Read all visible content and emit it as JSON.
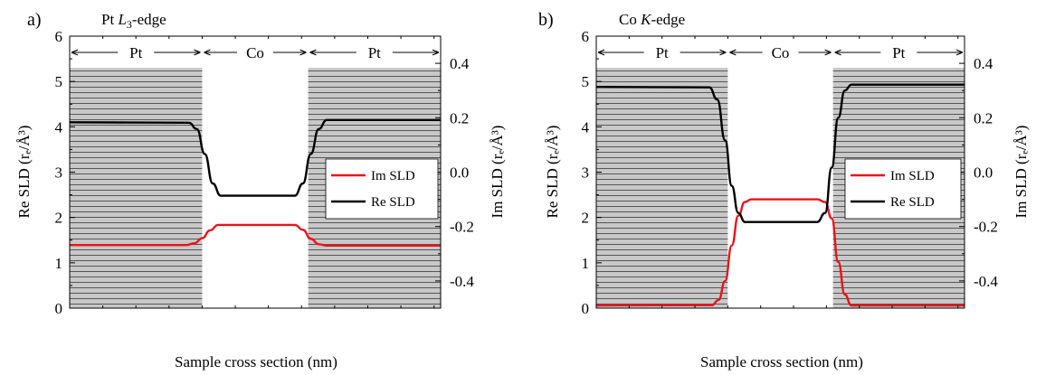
{
  "chart_data": [
    {
      "panel_label": "a)",
      "title_prefix": "Pt ",
      "title_edge": "L",
      "title_edge_sub": "3",
      "title_suffix": "-edge",
      "type": "line",
      "xlabel": "Sample cross section (nm)",
      "ylabel_left": "Re SLD (rₑ/Å³)",
      "ylabel_right": "Im SLD (rₑ/Å³)",
      "xlim": [
        2,
        30
      ],
      "ylim_left": [
        0,
        6
      ],
      "ylim_right": [
        -0.5,
        0.5
      ],
      "xticks": [
        5,
        10,
        15,
        20,
        25,
        30
      ],
      "yticks_left": [
        0,
        1,
        2,
        3,
        4,
        5,
        6
      ],
      "yticks_right": [
        -0.4,
        -0.2,
        0.0,
        0.2,
        0.4
      ],
      "ytick_labels_right": [
        "-0.4",
        "-0.2",
        "0.0",
        "0.2",
        "0.4"
      ],
      "regions": [
        {
          "label": "Pt",
          "x": [
            2,
            12
          ],
          "hatched": true
        },
        {
          "label": "Co",
          "x": [
            12,
            20
          ],
          "hatched": false
        },
        {
          "label": "Pt",
          "x": [
            20,
            30
          ],
          "hatched": true
        }
      ],
      "series": [
        {
          "name": "Im SLD",
          "axis": "right",
          "color": "#e8141b",
          "x": [
            2,
            10.8,
            11.4,
            12.0,
            12.6,
            13.2,
            19.0,
            19.6,
            20.2,
            20.8,
            21.4,
            30
          ],
          "y": [
            -0.268,
            -0.268,
            -0.262,
            -0.243,
            -0.214,
            -0.194,
            -0.194,
            -0.212,
            -0.245,
            -0.265,
            -0.27,
            -0.27
          ]
        },
        {
          "name": "Re SLD",
          "axis": "left",
          "color": "#000000",
          "x": [
            2,
            11.0,
            11.6,
            12.2,
            12.8,
            13.4,
            19.0,
            19.6,
            20.2,
            20.8,
            21.4,
            30
          ],
          "y": [
            4.1,
            4.09,
            3.95,
            3.4,
            2.75,
            2.48,
            2.48,
            2.75,
            3.4,
            3.95,
            4.15,
            4.15
          ]
        }
      ],
      "legend": {
        "position": "center-right",
        "entries": [
          "Im SLD",
          "Re SLD"
        ]
      }
    },
    {
      "panel_label": "b)",
      "title_prefix": "Co ",
      "title_edge": "K",
      "title_edge_sub": "",
      "title_suffix": "-edge",
      "type": "line",
      "xlabel": "Sample cross section (nm)",
      "ylabel_left": "Re SLD (rₑ/Å³)",
      "ylabel_right": "Im SLD (rₑ/Å³)",
      "xlim": [
        2,
        30
      ],
      "ylim_left": [
        0,
        6
      ],
      "ylim_right": [
        -0.5,
        0.5
      ],
      "xticks": [
        5,
        10,
        15,
        20,
        25,
        30
      ],
      "yticks_left": [
        0,
        1,
        2,
        3,
        4,
        5,
        6
      ],
      "yticks_right": [
        -0.4,
        -0.2,
        0.0,
        0.2,
        0.4
      ],
      "ytick_labels_right": [
        "-0.4",
        "-0.2",
        "0.0",
        "0.2",
        "0.4"
      ],
      "regions": [
        {
          "label": "Pt",
          "x": [
            2,
            12
          ],
          "hatched": true
        },
        {
          "label": "Co",
          "x": [
            12,
            20
          ],
          "hatched": false
        },
        {
          "label": "Pt",
          "x": [
            20,
            30
          ],
          "hatched": true
        }
      ],
      "series": [
        {
          "name": "Im SLD",
          "axis": "right",
          "color": "#e8141b",
          "x": [
            2,
            10.8,
            11.3,
            11.8,
            12.3,
            12.8,
            13.3,
            13.8,
            18.8,
            19.4,
            19.9,
            20.4,
            20.9,
            21.4,
            30
          ],
          "y": [
            -0.49,
            -0.489,
            -0.47,
            -0.4,
            -0.27,
            -0.16,
            -0.11,
            -0.1,
            -0.1,
            -0.11,
            -0.17,
            -0.33,
            -0.45,
            -0.49,
            -0.49
          ]
        },
        {
          "name": "Re SLD",
          "axis": "left",
          "color": "#000000",
          "x": [
            2,
            10.6,
            11.2,
            11.8,
            12.3,
            12.8,
            13.3,
            18.8,
            19.4,
            19.9,
            20.4,
            20.9,
            21.4,
            30
          ],
          "y": [
            4.88,
            4.87,
            4.6,
            3.7,
            2.7,
            2.1,
            1.9,
            1.9,
            2.1,
            3.1,
            4.2,
            4.8,
            4.93,
            4.93
          ]
        }
      ],
      "legend": {
        "position": "center-right",
        "entries": [
          "Im SLD",
          "Re SLD"
        ]
      }
    }
  ]
}
